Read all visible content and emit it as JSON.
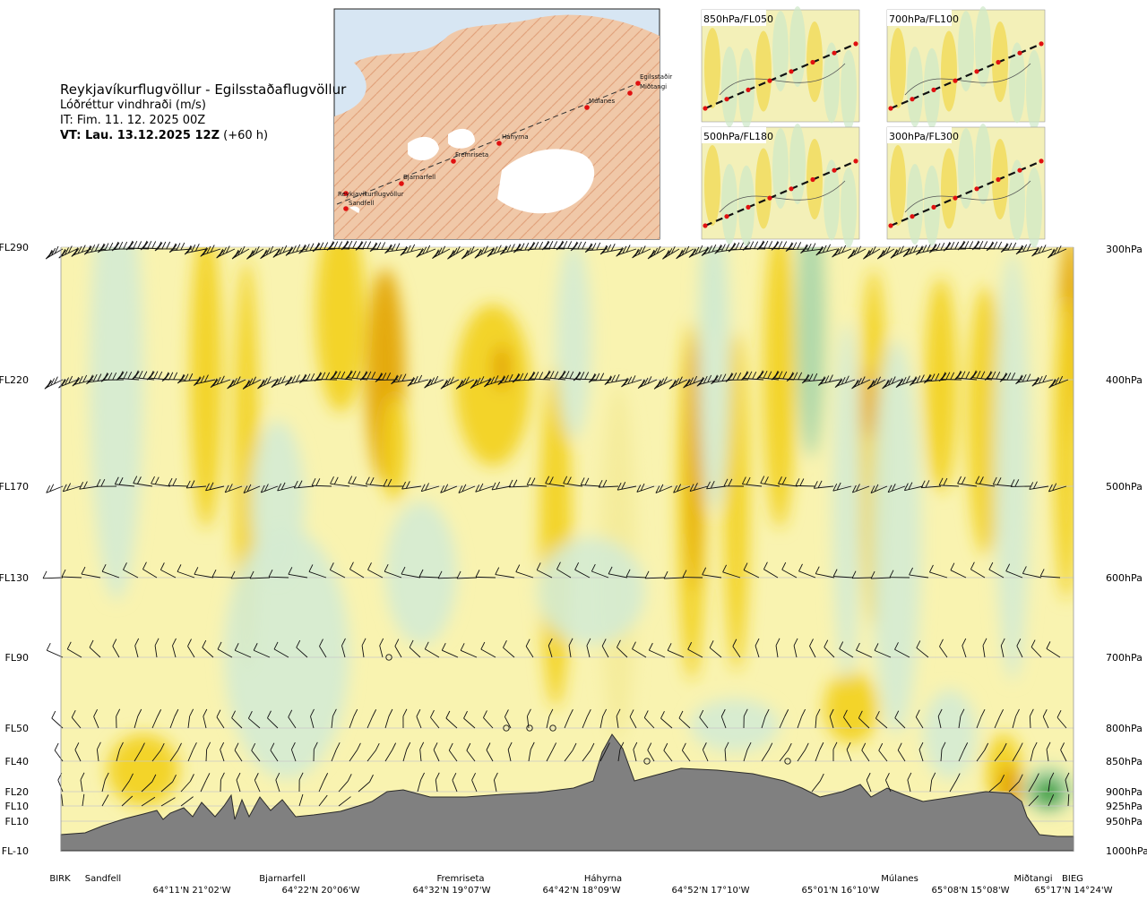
{
  "header": {
    "route": "Reykjavíkurflugvöllur - Egilsstaðaflugvöllur",
    "variable": "Lóðréttur vindhraði (m/s)",
    "issue_time": "IT: Fim. 11. 12. 2025 00Z",
    "valid_label": "VT: Lau. 13.12.2025 12Z",
    "valid_offset": "(+60 h)"
  },
  "map": {
    "places": [
      "Egilsstaðir",
      "Miðtangi",
      "Múlanes",
      "Háhyrna",
      "Fremriseta",
      "Bjarnarfell",
      "Reykjavíkurflugvöllur",
      "Sandfell"
    ]
  },
  "thumbnails": [
    "850hPa/FL050",
    "700hPa/FL100",
    "500hPa/FL180",
    "300hPa/FL300"
  ],
  "chart_data": {
    "type": "heatmap",
    "title": "",
    "left_axis": {
      "labels": [
        "FL290",
        "FL220",
        "FL170",
        "FL130",
        "FL90",
        "FL50",
        "FL40",
        "FL20",
        "FL10",
        "FL10",
        "FL-10"
      ]
    },
    "right_axis": {
      "labels": [
        "300hPa",
        "400hPa",
        "500hPa",
        "600hPa",
        "700hPa",
        "800hPa",
        "850hPa",
        "900hPa",
        "925hPa",
        "950hPa",
        "1000hPa"
      ]
    },
    "waypoints": [
      "BIRK",
      "Sandfell",
      "Bjarnarfell",
      "Fremriseta",
      "Háhyrna",
      "Miðtangi",
      "Múlanes",
      "BIEG"
    ],
    "coordinates": [
      "64°11'N 21°02'W",
      "64°22'N 20°06'W",
      "64°32'N 19°07'W",
      "64°42'N 18°09'W",
      "64°52'N 17°10'W",
      "65°01'N 16°10'W",
      "65°08'N 15°08'W",
      "65°17'N 14°24'W"
    ],
    "palette": {
      "strong_up": "#e3a400",
      "up": "#f2d11c",
      "weak_up": "#f4ec9a",
      "neutral": "#fdfbd7",
      "weak_down": "#d5ecd2",
      "down": "#a9d6a9",
      "strong_down": "#2e9a2e",
      "terrain": "#808080"
    }
  }
}
